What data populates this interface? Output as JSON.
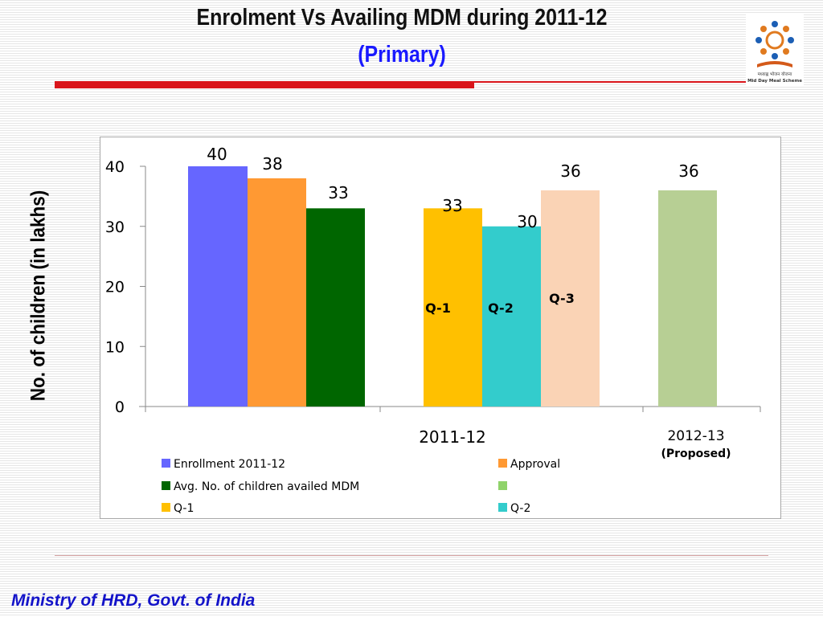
{
  "header": {
    "title": "Enrolment Vs Availing MDM during  2011-12",
    "subtitle": "(Primary)",
    "logo_text": "मध्याह्न भोजन योजना",
    "logo_subtext": "Mid Day Meal Scheme"
  },
  "footer": {
    "text": "Ministry of HRD, Govt. of India"
  },
  "colors": {
    "accent_red": "#d9151b",
    "title_blue": "#1a1aff",
    "footer_blue": "#1313c9"
  },
  "chart_data": {
    "type": "bar",
    "title": "",
    "xlabel": "",
    "ylabel": "No. of children (in lakhs)",
    "ylim": [
      0,
      40
    ],
    "yticks": [
      0,
      10,
      20,
      30,
      40
    ],
    "grid": false,
    "legend_position": "bottom",
    "categories": [
      "2011-12",
      "2012-13"
    ],
    "category_note": {
      "2012-13": "(Proposed)"
    },
    "bars": [
      {
        "series": "Enrollment 2011-12",
        "category": "2011-12",
        "value": 40,
        "color": "#6666ff",
        "label": ""
      },
      {
        "series": "Approval",
        "category": "2011-12",
        "value": 38,
        "color": "#ff9933",
        "label": ""
      },
      {
        "series": "Avg. No. of children availed MDM",
        "category": "2011-12",
        "value": 33,
        "color": "#006600",
        "label": ""
      },
      {
        "series": "Q-1",
        "category": "2011-12",
        "value": 33,
        "color": "#ffc000",
        "label": "Q-1"
      },
      {
        "series": "Q-2",
        "category": "2011-12",
        "value": 30,
        "color": "#33cccc",
        "label": "Q-2"
      },
      {
        "series": "Q-3",
        "category": "2011-12",
        "value": 36,
        "color": "#fad3b5",
        "label": "Q-3"
      },
      {
        "series": "",
        "category": "2012-13",
        "value": 36,
        "color": "#b7cf94",
        "label": ""
      }
    ],
    "legend": [
      {
        "name": "Enrollment 2011-12",
        "color": "#6666ff"
      },
      {
        "name": "Approval",
        "color": "#ff9933"
      },
      {
        "name": "Avg. No. of children availed MDM",
        "color": "#006600"
      },
      {
        "name": "",
        "color": "#8fd36a"
      },
      {
        "name": "Q-1",
        "color": "#ffc000"
      },
      {
        "name": "Q-2",
        "color": "#33cccc"
      }
    ]
  }
}
